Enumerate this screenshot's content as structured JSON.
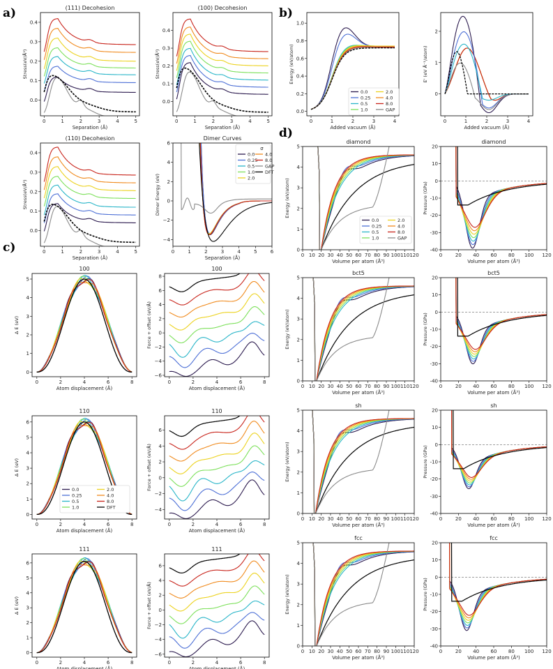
{
  "figure": {
    "panel_labels": [
      "a)",
      "b)",
      "c)",
      "d)"
    ]
  },
  "palette": {
    "0.0": "#2b1a4e",
    "0.25": "#4c6fd6",
    "0.5": "#28b5c8",
    "1.0": "#7ce05a",
    "2.0": "#ecd21e",
    "4.0": "#f08a1c",
    "8.0": "#c8231a",
    "GAP": "#8a8a8a",
    "DFT": "#000000"
  },
  "legends": {
    "dimer": {
      "title": "σ",
      "col1": [
        "0.0",
        "0.25",
        "0.5",
        "1.0",
        "2.0"
      ],
      "col2": [
        "4.0",
        "8.0",
        "GAP",
        "DFT"
      ]
    },
    "vacuum": {
      "col1": [
        "0.0",
        "0.25",
        "0.5",
        "1.0"
      ],
      "col2": [
        "2.0",
        "4.0",
        "8.0",
        "GAP"
      ]
    },
    "diamond": {
      "col1": [
        "0.0",
        "0.25",
        "0.5",
        "1.0"
      ],
      "col2": [
        "2.0",
        "4.0",
        "8.0",
        "GAP"
      ]
    },
    "disp110": {
      "col1": [
        "0.0",
        "0.25",
        "0.5",
        "1.0"
      ],
      "col2": [
        "2.0",
        "4.0",
        "8.0",
        "DFT"
      ]
    }
  },
  "chart_data": [
    {
      "id": "dec111",
      "type": "line",
      "title": "(111) Decohesion",
      "xlabel": "Separation (Å)",
      "ylabel": "Stress(eV/Å³)",
      "xlim": [
        -0.2,
        5.2
      ],
      "ylim": [
        -0.08,
        0.45
      ],
      "xticks": [
        0,
        1,
        2,
        3,
        4,
        5
      ],
      "yticks": [
        0.0,
        0.1,
        0.2,
        0.3,
        0.4
      ],
      "tick_labels_y": [
        "0.0",
        "0.1",
        "0.2",
        "0.3",
        "0.4"
      ],
      "series": [
        {
          "name": "0.0",
          "peak": 0.12,
          "plateau": 0.04
        },
        {
          "name": "0.25",
          "peak": 0.175,
          "plateau": 0.09
        },
        {
          "name": "0.5",
          "peak": 0.225,
          "plateau": 0.13
        },
        {
          "name": "1.0",
          "peak": 0.27,
          "plateau": 0.165
        },
        {
          "name": "2.0",
          "peak": 0.32,
          "plateau": 0.2
        },
        {
          "name": "4.0",
          "peak": 0.37,
          "plateau": 0.245
        },
        {
          "name": "8.0",
          "peak": 0.42,
          "plateau": 0.285
        },
        {
          "name": "GAP",
          "peak": 0.09,
          "plateau": -0.04
        },
        {
          "name": "DFT",
          "peak": 0.11,
          "plateau": 0.0
        }
      ]
    },
    {
      "id": "dec100",
      "type": "line",
      "title": "(100) Decohesion",
      "xlabel": "Separation (Å)",
      "ylabel": "Stress(eV/Å³)",
      "xlim": [
        -0.2,
        5.2
      ],
      "ylim": [
        -0.08,
        0.5
      ],
      "xticks": [
        0,
        1,
        2,
        3,
        4,
        5
      ],
      "yticks": [
        0.0,
        0.1,
        0.2,
        0.3,
        0.4
      ],
      "tick_labels_y": [
        "0.0",
        "0.1",
        "0.2",
        "0.3",
        "0.4"
      ],
      "series": [
        {
          "name": "0.0",
          "peak": 0.22,
          "plateau": 0.04
        },
        {
          "name": "0.25",
          "peak": 0.26,
          "plateau": 0.08
        },
        {
          "name": "0.5",
          "peak": 0.3,
          "plateau": 0.12
        },
        {
          "name": "1.0",
          "peak": 0.34,
          "plateau": 0.16
        },
        {
          "name": "2.0",
          "peak": 0.38,
          "plateau": 0.2
        },
        {
          "name": "4.0",
          "peak": 0.42,
          "plateau": 0.24
        },
        {
          "name": "8.0",
          "peak": 0.465,
          "plateau": 0.28
        },
        {
          "name": "GAP",
          "peak": 0.15,
          "plateau": -0.04
        },
        {
          "name": "DFT",
          "peak": 0.18,
          "plateau": 0.0
        }
      ]
    },
    {
      "id": "dec110",
      "type": "line",
      "title": "(110) Decohesion",
      "xlabel": "Separation (Å)",
      "ylabel": "Stress(eV/Å³)",
      "xlim": [
        -0.2,
        5.2
      ],
      "ylim": [
        -0.08,
        0.45
      ],
      "xticks": [
        0,
        1,
        2,
        3,
        4,
        5
      ],
      "yticks": [
        0.0,
        0.1,
        0.2,
        0.3,
        0.4
      ],
      "tick_labels_y": [
        "0.0",
        "0.1",
        "0.2",
        "0.3",
        "0.4"
      ],
      "series": [
        {
          "name": "0.0",
          "peak": 0.14,
          "plateau": 0.04
        },
        {
          "name": "0.25",
          "peak": 0.19,
          "plateau": 0.08
        },
        {
          "name": "0.5",
          "peak": 0.235,
          "plateau": 0.12
        },
        {
          "name": "1.0",
          "peak": 0.28,
          "plateau": 0.165
        },
        {
          "name": "2.0",
          "peak": 0.33,
          "plateau": 0.205
        },
        {
          "name": "4.0",
          "peak": 0.38,
          "plateau": 0.245
        },
        {
          "name": "8.0",
          "peak": 0.43,
          "plateau": 0.285
        },
        {
          "name": "GAP",
          "peak": 0.1,
          "plateau": -0.04
        },
        {
          "name": "DFT",
          "peak": 0.12,
          "plateau": 0.0
        }
      ]
    },
    {
      "id": "dimer",
      "type": "line",
      "title": "Dimer Curves",
      "xlabel": "Separation (Å)",
      "ylabel": "Dimer Energy (eV)",
      "xlim": [
        0,
        6
      ],
      "ylim": [
        -4.7,
        6
      ],
      "xticks": [
        0,
        1,
        2,
        3,
        4,
        5,
        6
      ],
      "yticks": [
        -4,
        -2,
        0,
        2,
        4,
        6
      ],
      "tick_labels_y": [
        "−4",
        "−2",
        "0",
        "2",
        "4",
        "6"
      ],
      "series": [
        {
          "name": "0.0",
          "min": -3.5,
          "rmin": 2.25
        },
        {
          "name": "0.25",
          "min": -3.4,
          "rmin": 2.25
        },
        {
          "name": "0.5",
          "min": -3.4,
          "rmin": 2.2
        },
        {
          "name": "1.0",
          "min": -3.4,
          "rmin": 2.2
        },
        {
          "name": "2.0",
          "min": -3.4,
          "rmin": 2.2
        },
        {
          "name": "4.0",
          "min": -3.5,
          "rmin": 2.2
        },
        {
          "name": "8.0",
          "min": -3.5,
          "rmin": 2.2
        },
        {
          "name": "GAP",
          "min": -1.0,
          "rmin": 2.3
        },
        {
          "name": "DFT",
          "min": -4.2,
          "rmin": 2.45
        }
      ]
    },
    {
      "id": "vacE",
      "type": "line",
      "xlabel": "Added vacuum (Å)",
      "ylabel": "Energy (eV/atom)",
      "xlim": [
        -0.2,
        4.2
      ],
      "ylim": [
        -0.05,
        1.12
      ],
      "xticks": [
        0,
        1,
        2,
        3,
        4
      ],
      "yticks": [
        0.0,
        0.2,
        0.4,
        0.6,
        0.8,
        1.0
      ],
      "tick_labels_y": [
        "0.0",
        "0.2",
        "0.4",
        "0.6",
        "0.8",
        "1.0"
      ],
      "series": [
        {
          "name": "0.0",
          "peak": 1.04,
          "xpeak": 1.45,
          "plateau": 0.73
        },
        {
          "name": "0.25",
          "peak": 0.95,
          "xpeak": 1.5,
          "plateau": 0.73
        },
        {
          "name": "0.5",
          "peak": 0.78,
          "xpeak": 1.6,
          "plateau": 0.74
        },
        {
          "name": "1.0",
          "peak": 0.77,
          "xpeak": 1.7,
          "plateau": 0.74
        },
        {
          "name": "2.0",
          "peak": 0.76,
          "xpeak": 1.8,
          "plateau": 0.74
        },
        {
          "name": "4.0",
          "peak": 0.75,
          "xpeak": 1.9,
          "plateau": 0.73
        },
        {
          "name": "8.0",
          "peak": 0.74,
          "xpeak": 2.0,
          "plateau": 0.73
        },
        {
          "name": "GAP",
          "peak": 0.73,
          "xpeak": 2.2,
          "plateau": 0.72
        },
        {
          "name": "DFT (dashed)",
          "peak": 0.72,
          "xpeak": 2.6,
          "plateau": 0.72
        }
      ]
    },
    {
      "id": "vacF",
      "type": "line",
      "xlabel": "Added vacuum (Å)",
      "ylabel": "E' (eV Å⁻¹/atom)",
      "xlim": [
        -0.2,
        4.2
      ],
      "ylim": [
        -0.7,
        2.6
      ],
      "xticks": [
        0,
        1,
        2,
        3,
        4
      ],
      "yticks": [
        0,
        1,
        2
      ],
      "tick_labels_y": [
        "0",
        "1",
        "2"
      ],
      "series": [
        {
          "name": "0.0",
          "peak": 2.5,
          "xpeak": 0.95,
          "min": -0.6
        },
        {
          "name": "0.25",
          "peak": 2.0,
          "xpeak": 1.0,
          "min": -0.45
        },
        {
          "name": "0.5",
          "peak": 1.6,
          "xpeak": 1.0,
          "min": -0.2
        },
        {
          "name": "GAP",
          "peak": 1.0,
          "xpeak": 0.8,
          "min": -0.5
        },
        {
          "name": "DFT (dashed)",
          "peak": 1.4,
          "xpeak": 0.6,
          "min": 0.0
        }
      ]
    },
    {
      "id": "dispE100",
      "type": "line",
      "title": "100",
      "xlabel": "Atom displacement (Å)",
      "ylabel": "Δ E (eV)",
      "xlim": [
        -0.4,
        8.4
      ],
      "ylim": [
        -0.25,
        5.3
      ],
      "xticks": [
        0,
        2,
        4,
        6,
        8
      ],
      "yticks": [
        0,
        1,
        2,
        3,
        4,
        5
      ],
      "tick_labels_y": [
        "0",
        "1",
        "2",
        "3",
        "4",
        "5"
      ],
      "peak": 5.0
    },
    {
      "id": "dispF100",
      "type": "line",
      "title": "100",
      "xlabel": "Atom displacement (Å)",
      "ylabel": "Force + offset (eV/Å)",
      "xlim": [
        -0.4,
        8.4
      ],
      "ylim": [
        -6.2,
        8.4
      ],
      "xticks": [
        0,
        2,
        4,
        6,
        8
      ],
      "yticks": [
        -6,
        -4,
        -2,
        0,
        2,
        4,
        6,
        8
      ],
      "tick_labels_y": [
        "−6",
        "−4",
        "−2",
        "0",
        "2",
        "4",
        "6",
        "8"
      ]
    },
    {
      "id": "dispE110",
      "type": "line",
      "title": "110",
      "xlabel": "Atom displacement (Å)",
      "ylabel": "Δ E (eV)",
      "xlim": [
        -0.4,
        8.4
      ],
      "ylim": [
        -0.3,
        6.4
      ],
      "xticks": [
        0,
        2,
        4,
        6,
        8
      ],
      "yticks": [
        0,
        1,
        2,
        3,
        4,
        5,
        6
      ],
      "tick_labels_y": [
        "0",
        "1",
        "2",
        "3",
        "4",
        "5",
        "6"
      ],
      "peak": 6.0
    },
    {
      "id": "dispF110",
      "type": "line",
      "title": "110",
      "xlabel": "Atom displacement (Å)",
      "ylabel": "Force + offset (eV/Å)",
      "xlim": [
        -0.4,
        8.4
      ],
      "ylim": [
        -5.2,
        7.8
      ],
      "xticks": [
        0,
        2,
        4,
        6,
        8
      ],
      "yticks": [
        -4,
        -2,
        0,
        2,
        4,
        6
      ],
      "tick_labels_y": [
        "−4",
        "−2",
        "0",
        "2",
        "4",
        "6"
      ]
    },
    {
      "id": "dispE111",
      "type": "line",
      "title": "111",
      "xlabel": "Atom displacement (Å)",
      "ylabel": "Δ E (eV)",
      "xlim": [
        -0.4,
        8.4
      ],
      "ylim": [
        -0.3,
        6.6
      ],
      "xticks": [
        0,
        2,
        4,
        6,
        8
      ],
      "yticks": [
        0,
        1,
        2,
        3,
        4,
        5,
        6
      ],
      "tick_labels_y": [
        "0",
        "1",
        "2",
        "3",
        "4",
        "5",
        "6"
      ],
      "peak": 6.1
    },
    {
      "id": "dispF111",
      "type": "line",
      "title": "111",
      "xlabel": "Atom displacement (Å)",
      "ylabel": "Force + offset (eV/Å)",
      "xlim": [
        -0.4,
        8.4
      ],
      "ylim": [
        -6.4,
        7.6
      ],
      "xticks": [
        0,
        2,
        4,
        6,
        8
      ],
      "yticks": [
        -6,
        -4,
        -2,
        0,
        2,
        4,
        6
      ],
      "tick_labels_y": [
        "−6",
        "−4",
        "−2",
        "0",
        "2",
        "4",
        "6"
      ]
    },
    {
      "id": "eosE_diamond",
      "type": "line",
      "title": "diamond",
      "xlabel": "Volume per atom (Å³)",
      "ylabel": "Energy (eV/atom)",
      "xlim": [
        0,
        120
      ],
      "ylim": [
        0,
        5
      ],
      "xticks": [
        0,
        10,
        20,
        30,
        40,
        50,
        60,
        70,
        80,
        90,
        100,
        110,
        120
      ],
      "yticks": [
        0,
        1,
        2,
        3,
        4,
        5
      ],
      "vmin": 20
    },
    {
      "id": "eosP_diamond",
      "type": "line",
      "title": "diamond",
      "xlabel": "Volume per atom (Å³)",
      "ylabel": "Pressure (GPa)",
      "xlim": [
        0,
        120
      ],
      "ylim": [
        -40,
        20
      ],
      "xticks": [
        0,
        20,
        40,
        60,
        80,
        100,
        120
      ],
      "yticks": [
        -40,
        -30,
        -20,
        -10,
        0,
        10,
        20
      ],
      "pmin": -36,
      "vpmin": 35
    },
    {
      "id": "eosE_bct5",
      "type": "line",
      "title": "bct5",
      "xlabel": "Volume per atom (Å³)",
      "ylabel": "Energy (eV/atom)",
      "xlim": [
        0,
        120
      ],
      "ylim": [
        0,
        5
      ],
      "xticks": [
        0,
        10,
        20,
        30,
        40,
        50,
        60,
        70,
        80,
        90,
        100,
        110,
        120
      ],
      "yticks": [
        0,
        1,
        2,
        3,
        4,
        5
      ],
      "vmin": 15
    },
    {
      "id": "eosP_bct5",
      "type": "line",
      "title": "bct5",
      "xlabel": "Volume per atom (Å³)",
      "ylabel": "Pressure (GPa)",
      "xlim": [
        0,
        120
      ],
      "ylim": [
        -40,
        20
      ],
      "xticks": [
        0,
        20,
        40,
        60,
        80,
        100,
        120
      ],
      "yticks": [
        -40,
        -30,
        -20,
        -10,
        0,
        10,
        20
      ],
      "pmin": -26,
      "vpmin": 35
    },
    {
      "id": "eosE_sh",
      "type": "line",
      "title": "sh",
      "xlabel": "Volume per atom (Å³)",
      "ylabel": "Energy (eV/atom)",
      "xlim": [
        0,
        120
      ],
      "ylim": [
        0,
        5
      ],
      "xticks": [
        0,
        10,
        20,
        30,
        40,
        50,
        60,
        70,
        80,
        90,
        100,
        110,
        120
      ],
      "yticks": [
        0,
        1,
        2,
        3,
        4,
        5
      ],
      "vmin": 14
    },
    {
      "id": "eosP_sh",
      "type": "line",
      "title": "sh",
      "xlabel": "Volume per atom (Å³)",
      "ylabel": "Pressure (GPa)",
      "xlim": [
        0,
        120
      ],
      "ylim": [
        -40,
        20
      ],
      "xticks": [
        0,
        20,
        40,
        60,
        80,
        100,
        120
      ],
      "yticks": [
        -40,
        -30,
        -20,
        -10,
        0,
        10,
        20
      ],
      "pmin": -21,
      "vpmin": 30
    },
    {
      "id": "eosE_fcc",
      "type": "line",
      "title": "fcc",
      "xlabel": "Volume per atom (Å³)",
      "ylabel": "Energy (eV/atom)",
      "xlim": [
        0,
        120
      ],
      "ylim": [
        0,
        5
      ],
      "xticks": [
        0,
        10,
        20,
        30,
        40,
        50,
        60,
        70,
        80,
        90,
        100,
        110,
        120
      ],
      "yticks": [
        0,
        1,
        2,
        3,
        4,
        5
      ],
      "vmin": 15
    },
    {
      "id": "eosP_fcc",
      "type": "line",
      "title": "fcc",
      "xlabel": "Volume per atom (Å³)",
      "ylabel": "Pressure (GPa)",
      "xlim": [
        0,
        120
      ],
      "ylim": [
        -40,
        20
      ],
      "xticks": [
        0,
        20,
        40,
        60,
        80,
        100,
        120
      ],
      "yticks": [
        -40,
        -30,
        -20,
        -10,
        0,
        10,
        20
      ],
      "pmin": -27,
      "vpmin": 28
    }
  ]
}
